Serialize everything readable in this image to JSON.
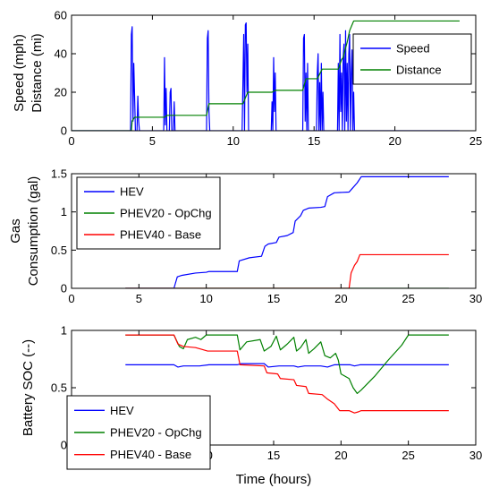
{
  "chart_data": [
    {
      "type": "line",
      "title": "",
      "xlabel": "",
      "ylabel_lines": [
        "Speed (mph)",
        "Distance (mi)"
      ],
      "xlim": [
        0,
        25
      ],
      "ylim": [
        0,
        60
      ],
      "xticks": [
        0,
        5,
        10,
        15,
        20,
        25
      ],
      "yticks": [
        0,
        20,
        40,
        60
      ],
      "grid": false,
      "legend_placement": "top-right",
      "series": [
        {
          "name": "Speed",
          "color": "#0000ff",
          "points": [
            [
              0,
              0
            ],
            [
              3.65,
              0
            ],
            [
              3.7,
              50
            ],
            [
              3.75,
              54
            ],
            [
              3.8,
              5
            ],
            [
              3.85,
              35
            ],
            [
              3.9,
              18
            ],
            [
              3.95,
              0
            ],
            [
              4.05,
              0
            ],
            [
              4.1,
              18
            ],
            [
              4.15,
              5
            ],
            [
              4.2,
              0
            ],
            [
              5.7,
              0
            ],
            [
              5.75,
              38
            ],
            [
              5.8,
              3
            ],
            [
              5.85,
              22
            ],
            [
              5.9,
              0
            ],
            [
              6.05,
              0
            ],
            [
              6.1,
              20
            ],
            [
              6.15,
              22
            ],
            [
              6.2,
              0
            ],
            [
              6.3,
              0
            ],
            [
              6.35,
              15
            ],
            [
              6.4,
              0
            ],
            [
              8.35,
              0
            ],
            [
              8.4,
              48
            ],
            [
              8.45,
              52
            ],
            [
              8.5,
              10
            ],
            [
              8.55,
              0
            ],
            [
              10.55,
              0
            ],
            [
              10.6,
              25
            ],
            [
              10.65,
              50
            ],
            [
              10.7,
              0
            ],
            [
              10.75,
              55
            ],
            [
              10.8,
              56
            ],
            [
              10.85,
              20
            ],
            [
              10.9,
              45
            ],
            [
              10.95,
              0
            ],
            [
              12.35,
              0
            ],
            [
              12.4,
              15
            ],
            [
              12.45,
              0
            ],
            [
              12.5,
              38
            ],
            [
              12.55,
              10
            ],
            [
              12.6,
              30
            ],
            [
              12.65,
              0
            ],
            [
              14.3,
              0
            ],
            [
              14.35,
              48
            ],
            [
              14.4,
              50
            ],
            [
              14.45,
              5
            ],
            [
              14.5,
              30
            ],
            [
              14.55,
              0
            ],
            [
              14.6,
              35
            ],
            [
              14.65,
              0
            ],
            [
              15.15,
              0
            ],
            [
              15.2,
              30
            ],
            [
              15.25,
              40
            ],
            [
              15.3,
              0
            ],
            [
              15.35,
              25
            ],
            [
              15.4,
              0
            ],
            [
              15.45,
              35
            ],
            [
              15.5,
              0
            ],
            [
              15.55,
              20
            ],
            [
              15.6,
              0
            ],
            [
              16.45,
              0
            ],
            [
              16.5,
              35
            ],
            [
              16.55,
              0
            ],
            [
              16.6,
              50
            ],
            [
              16.65,
              10
            ],
            [
              16.7,
              30
            ],
            [
              16.75,
              0
            ],
            [
              16.8,
              38
            ],
            [
              16.85,
              45
            ],
            [
              16.9,
              0
            ],
            [
              16.95,
              52
            ],
            [
              17.0,
              5
            ],
            [
              17.05,
              35
            ],
            [
              17.1,
              0
            ],
            [
              17.15,
              40
            ],
            [
              17.2,
              50
            ],
            [
              17.25,
              0
            ],
            [
              17.3,
              30
            ],
            [
              17.35,
              42
            ],
            [
              17.4,
              0
            ],
            [
              17.45,
              20
            ],
            [
              17.5,
              0
            ],
            [
              24,
              0
            ]
          ]
        },
        {
          "name": "Distance",
          "color": "#008000",
          "points": [
            [
              0,
              0
            ],
            [
              3.7,
              0
            ],
            [
              3.75,
              5
            ],
            [
              3.9,
              7
            ],
            [
              5.75,
              7
            ],
            [
              5.9,
              8
            ],
            [
              8.35,
              8
            ],
            [
              8.5,
              14
            ],
            [
              10.6,
              14
            ],
            [
              10.9,
              20
            ],
            [
              12.4,
              20
            ],
            [
              12.6,
              21
            ],
            [
              14.3,
              21
            ],
            [
              14.5,
              27
            ],
            [
              15.2,
              27
            ],
            [
              15.5,
              32
            ],
            [
              16.5,
              32
            ],
            [
              16.7,
              37
            ],
            [
              16.8,
              38
            ],
            [
              16.95,
              43
            ],
            [
              17.05,
              46
            ],
            [
              17.2,
              52
            ],
            [
              17.35,
              55
            ],
            [
              17.45,
              57
            ],
            [
              24,
              57
            ]
          ]
        }
      ]
    },
    {
      "type": "line",
      "title": "",
      "xlabel": "",
      "ylabel_lines": [
        "Gas",
        "Consumption (gal)"
      ],
      "xlim": [
        0,
        30
      ],
      "ylim": [
        0,
        1.5
      ],
      "xticks": [
        0,
        5,
        10,
        15,
        20,
        25,
        30
      ],
      "yticks": [
        0,
        0.5,
        1,
        1.5
      ],
      "grid": false,
      "legend_placement": "top-left",
      "series": [
        {
          "name": "HEV",
          "color": "#0000ff",
          "points": [
            [
              4,
              0
            ],
            [
              7.6,
              0
            ],
            [
              7.7,
              0.06
            ],
            [
              7.85,
              0.15
            ],
            [
              8.2,
              0.17
            ],
            [
              9.2,
              0.2
            ],
            [
              10.0,
              0.21
            ],
            [
              10.2,
              0.22
            ],
            [
              12.3,
              0.22
            ],
            [
              12.45,
              0.36
            ],
            [
              13.2,
              0.4
            ],
            [
              14.1,
              0.42
            ],
            [
              14.35,
              0.55
            ],
            [
              14.6,
              0.58
            ],
            [
              15.2,
              0.6
            ],
            [
              15.4,
              0.67
            ],
            [
              16.0,
              0.69
            ],
            [
              16.45,
              0.73
            ],
            [
              16.6,
              0.88
            ],
            [
              17.0,
              0.95
            ],
            [
              17.2,
              1.02
            ],
            [
              17.6,
              1.05
            ],
            [
              18.5,
              1.06
            ],
            [
              18.8,
              1.07
            ],
            [
              19.0,
              1.2
            ],
            [
              19.5,
              1.25
            ],
            [
              20.6,
              1.26
            ],
            [
              20.8,
              1.3
            ],
            [
              21.2,
              1.38
            ],
            [
              21.5,
              1.46
            ],
            [
              28,
              1.46
            ]
          ]
        },
        {
          "name": "PHEV20 - OpChg",
          "color": "#008000",
          "points": [
            [
              4,
              0
            ],
            [
              28,
              0
            ]
          ]
        },
        {
          "name": "PHEV40 - Base",
          "color": "#ff0000",
          "points": [
            [
              4,
              0
            ],
            [
              20.6,
              0
            ],
            [
              20.75,
              0.2
            ],
            [
              21.0,
              0.3
            ],
            [
              21.2,
              0.35
            ],
            [
              21.4,
              0.44
            ],
            [
              28,
              0.44
            ]
          ]
        }
      ]
    },
    {
      "type": "line",
      "title": "",
      "xlabel": "Time (hours)",
      "ylabel_lines": [
        "Battery SOC (--)"
      ],
      "xlim": [
        0,
        30
      ],
      "ylim": [
        0,
        1
      ],
      "xticks": [
        0,
        5,
        10,
        15,
        20,
        25,
        30
      ],
      "yticks": [
        0,
        0.5,
        1
      ],
      "grid": false,
      "legend_placement": "bottom-left",
      "series": [
        {
          "name": "HEV",
          "color": "#0000ff",
          "points": [
            [
              4,
              0.7
            ],
            [
              7.6,
              0.7
            ],
            [
              7.9,
              0.68
            ],
            [
              8.3,
              0.69
            ],
            [
              9.5,
              0.69
            ],
            [
              10.2,
              0.7
            ],
            [
              12.3,
              0.7
            ],
            [
              12.6,
              0.71
            ],
            [
              14.3,
              0.71
            ],
            [
              14.6,
              0.68
            ],
            [
              15.4,
              0.69
            ],
            [
              16.5,
              0.69
            ],
            [
              16.8,
              0.68
            ],
            [
              17.3,
              0.69
            ],
            [
              18.5,
              0.69
            ],
            [
              19.0,
              0.68
            ],
            [
              19.5,
              0.7
            ],
            [
              20.7,
              0.7
            ],
            [
              21.0,
              0.69
            ],
            [
              21.4,
              0.7
            ],
            [
              28,
              0.7
            ]
          ]
        },
        {
          "name": "PHEV20 - OpChg",
          "color": "#008000",
          "points": [
            [
              4,
              0.96
            ],
            [
              7.6,
              0.96
            ],
            [
              8.0,
              0.86
            ],
            [
              8.3,
              0.84
            ],
            [
              8.6,
              0.92
            ],
            [
              9.2,
              0.94
            ],
            [
              9.6,
              0.92
            ],
            [
              10.0,
              0.96
            ],
            [
              12.3,
              0.96
            ],
            [
              12.5,
              0.83
            ],
            [
              13.0,
              0.9
            ],
            [
              14.0,
              0.92
            ],
            [
              14.3,
              0.82
            ],
            [
              14.8,
              0.86
            ],
            [
              15.2,
              0.95
            ],
            [
              15.5,
              0.83
            ],
            [
              16.0,
              0.88
            ],
            [
              16.5,
              0.94
            ],
            [
              16.7,
              0.82
            ],
            [
              17.0,
              0.85
            ],
            [
              17.4,
              0.92
            ],
            [
              17.6,
              0.8
            ],
            [
              18.0,
              0.84
            ],
            [
              18.5,
              0.9
            ],
            [
              18.8,
              0.78
            ],
            [
              19.2,
              0.76
            ],
            [
              19.6,
              0.8
            ],
            [
              19.8,
              0.74
            ],
            [
              20.0,
              0.62
            ],
            [
              20.6,
              0.58
            ],
            [
              20.9,
              0.5
            ],
            [
              21.2,
              0.45
            ],
            [
              21.5,
              0.48
            ],
            [
              22.5,
              0.6
            ],
            [
              23.5,
              0.74
            ],
            [
              24.5,
              0.87
            ],
            [
              25.0,
              0.96
            ],
            [
              28,
              0.96
            ]
          ]
        },
        {
          "name": "PHEV40 - Base",
          "color": "#ff0000",
          "points": [
            [
              4,
              0.96
            ],
            [
              7.6,
              0.96
            ],
            [
              7.9,
              0.88
            ],
            [
              8.3,
              0.86
            ],
            [
              9.2,
              0.85
            ],
            [
              9.5,
              0.84
            ],
            [
              10.1,
              0.82
            ],
            [
              12.3,
              0.82
            ],
            [
              12.5,
              0.7
            ],
            [
              14.3,
              0.69
            ],
            [
              14.5,
              0.63
            ],
            [
              15.3,
              0.62
            ],
            [
              15.5,
              0.58
            ],
            [
              16.5,
              0.57
            ],
            [
              16.7,
              0.52
            ],
            [
              17.4,
              0.51
            ],
            [
              17.6,
              0.45
            ],
            [
              18.6,
              0.44
            ],
            [
              19.0,
              0.4
            ],
            [
              19.5,
              0.36
            ],
            [
              19.9,
              0.3
            ],
            [
              20.6,
              0.3
            ],
            [
              21.0,
              0.28
            ],
            [
              21.3,
              0.29
            ],
            [
              21.5,
              0.3
            ],
            [
              28,
              0.3
            ]
          ]
        }
      ]
    }
  ]
}
